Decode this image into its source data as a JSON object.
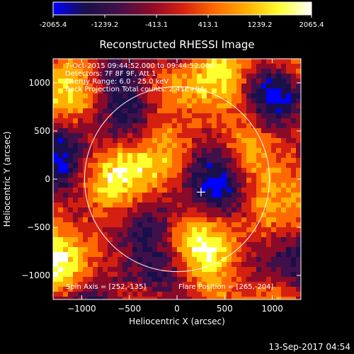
{
  "colorbar": {
    "ticks": [
      "-2065.4",
      "-1239.2",
      "-413.1",
      "413.1",
      "1239.2",
      "2065.4"
    ],
    "min": -2065.4,
    "max": 2065.4,
    "colormap": [
      "#0000ff",
      "#1a0f4a",
      "#40104a",
      "#8a0a2a",
      "#d42010",
      "#ff6a00",
      "#ffb000",
      "#ffff30",
      "#ffffff"
    ]
  },
  "footer": {
    "timestamp": "13-Sep-2017 04:54"
  },
  "chart_data": {
    "type": "heatmap",
    "title": "Reconstructed RHESSI Image",
    "xlabel": "Heliocentric X (arcsec)",
    "ylabel": "Heliocentric Y (arcsec)",
    "xlim": [
      -1300,
      1300
    ],
    "ylim": [
      -1250,
      1250
    ],
    "xticks": [
      {
        "value": -1000,
        "label": "−1000"
      },
      {
        "value": -500,
        "label": "−500"
      },
      {
        "value": 0,
        "label": "0"
      },
      {
        "value": 500,
        "label": "500"
      },
      {
        "value": 1000,
        "label": "1000"
      }
    ],
    "yticks": [
      {
        "value": 1000,
        "label": "1000"
      },
      {
        "value": 500,
        "label": "500"
      },
      {
        "value": 0,
        "label": "0"
      },
      {
        "value": -500,
        "label": "−500"
      },
      {
        "value": -1000,
        "label": "−1000"
      }
    ],
    "annotations": [
      "7-Oct-2015 09:44:52.000 to 09:44:52.000",
      "Detectors: 7F 8F 9F, Att 1",
      "Energy Range: 6.0 - 25.0 keV",
      "Back Projection    Total counts: 2.41E+04"
    ],
    "spin_axis_label": "Spin Axis = [252,-135]",
    "flare_position_label": "Flare Position = [265,-204]",
    "spin_axis": [
      252,
      -135
    ],
    "flare_position": [
      265,
      -204
    ],
    "solar_limb_radius": 970
  }
}
